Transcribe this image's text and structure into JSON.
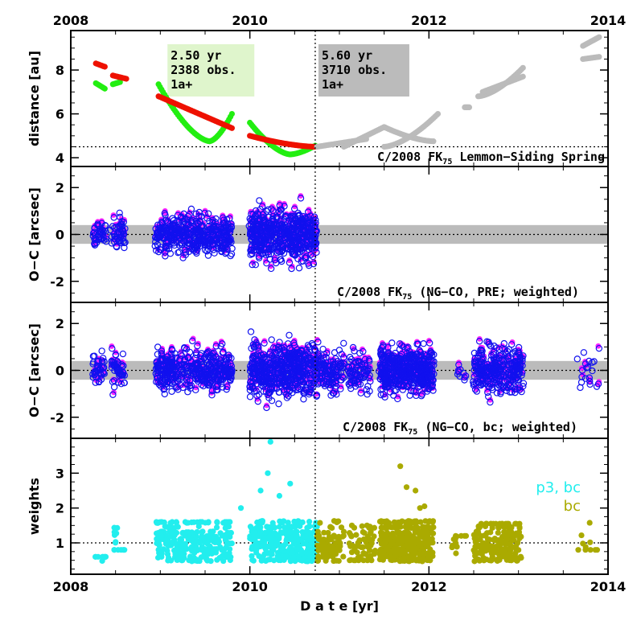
{
  "colors": {
    "green": "#22ee11",
    "red": "#ee1100",
    "gray": "#bbbbbb",
    "magenta": "#ff22ff",
    "blue": "#1111ee",
    "cyan": "#22eeee",
    "olive": "#aaaa00",
    "band": "#bbbbbb",
    "box_green": "#dff5cc",
    "box_gray": "#bbbbbb"
  },
  "chart_data": [
    {
      "type": "scatter",
      "panel": "distance",
      "title": "C/2008 FK75 Lemmon-Siding Spring",
      "title_main": "C/2008 FK",
      "title_sub": "75",
      "title_rest": " Lemmon−Siding Spring",
      "ylabel": "distance [au]",
      "xlim": [
        2008,
        2014
      ],
      "ylim": [
        3.6,
        9.8
      ],
      "yticks": [
        4,
        6,
        8
      ],
      "x_ticks_top": [
        "2008",
        "2010",
        "2012",
        "2014"
      ],
      "reference_y": 4.5,
      "perihelion_x": 2010.73,
      "info_boxes": [
        {
          "lines": [
            "2.50 yr",
            "2388 obs.",
            "1a+"
          ]
        },
        {
          "lines": [
            "5.60 yr",
            "3710 obs.",
            "1a+"
          ]
        }
      ],
      "series": [
        {
          "color": "green",
          "segments": [
            {
              "x0": 2008.28,
              "x1": 2008.38,
              "y0": 7.4,
              "y1": 7.15
            },
            {
              "x0": 2008.47,
              "x1": 2008.55,
              "y0": 7.35,
              "y1": 7.45
            },
            {
              "x0": 2008.98,
              "x1": 2009.55,
              "y0": 7.35,
              "y1": 4.75,
              "curve": "decay"
            },
            {
              "x0": 2009.55,
              "x1": 2009.8,
              "y0": 4.75,
              "y1": 6.0,
              "curve": "rise"
            },
            {
              "x0": 2010.0,
              "x1": 2010.45,
              "y0": 5.6,
              "y1": 4.15,
              "curve": "decay"
            },
            {
              "x0": 2010.45,
              "x1": 2010.73,
              "y0": 4.15,
              "y1": 4.55,
              "curve": "rise"
            }
          ]
        },
        {
          "color": "red",
          "segments": [
            {
              "x0": 2008.28,
              "x1": 2008.38,
              "y0": 8.3,
              "y1": 8.15
            },
            {
              "x0": 2008.47,
              "x1": 2008.62,
              "y0": 7.75,
              "y1": 7.6
            },
            {
              "x0": 2008.98,
              "x1": 2009.8,
              "y0": 6.8,
              "y1": 5.35
            },
            {
              "x0": 2010.0,
              "x1": 2010.73,
              "y0": 5.0,
              "y1": 4.5,
              "curve": "decay"
            }
          ]
        },
        {
          "color": "gray",
          "segments": [
            {
              "x0": 2010.75,
              "x1": 2011.3,
              "y0": 4.5,
              "y1": 4.85
            },
            {
              "x0": 2011.05,
              "x1": 2011.5,
              "y0": 4.5,
              "y1": 5.4
            },
            {
              "x0": 2011.5,
              "x1": 2012.05,
              "y0": 5.4,
              "y1": 4.75,
              "curve": "decay"
            },
            {
              "x0": 2011.5,
              "x1": 2012.1,
              "y0": 4.5,
              "y1": 6.0,
              "curve": "rise"
            },
            {
              "x0": 2012.4,
              "x1": 2012.45,
              "y0": 6.3,
              "y1": 6.3
            },
            {
              "x0": 2012.55,
              "x1": 2013.05,
              "y0": 6.8,
              "y1": 8.1,
              "curve": "rise"
            },
            {
              "x0": 2012.6,
              "x1": 2013.05,
              "y0": 7.0,
              "y1": 7.7
            },
            {
              "x0": 2013.72,
              "x1": 2013.9,
              "y0": 9.1,
              "y1": 9.5
            },
            {
              "x0": 2013.72,
              "x1": 2013.9,
              "y0": 8.5,
              "y1": 8.6
            }
          ]
        }
      ]
    },
    {
      "type": "scatter",
      "panel": "oc_pre",
      "title": "C/2008 FK75 (NG-CO, PRE; weighted)",
      "title_main": "C/2008 FK",
      "title_sub": "75",
      "title_rest": " (NG−CO, PRE; weighted)",
      "ylabel": "O-C [arcsec]",
      "ylabel_display": "O−C [arcsec]",
      "xlim": [
        2008,
        2014
      ],
      "ylim": [
        -2.9,
        2.9
      ],
      "yticks": [
        -2,
        0,
        2
      ],
      "band": [
        -0.4,
        0.4
      ],
      "clusters": [
        {
          "x0": 2008.25,
          "x1": 2008.4,
          "count": 40,
          "spread": 0.55
        },
        {
          "x0": 2008.45,
          "x1": 2008.6,
          "count": 50,
          "spread": 0.7
        },
        {
          "x0": 2008.95,
          "x1": 2009.8,
          "count": 420,
          "spread": 0.75
        },
        {
          "x0": 2010.0,
          "x1": 2010.75,
          "count": 520,
          "spread": 1.0
        }
      ],
      "series": [
        {
          "name": "",
          "color": "magenta",
          "marker": "filled"
        },
        {
          "name": "",
          "color": "blue",
          "marker": "open"
        }
      ]
    },
    {
      "type": "scatter",
      "panel": "oc_bc",
      "title": "C/2008 FK75 (NG-CO, bc; weighted)",
      "title_main": "C/2008 FK",
      "title_sub": "75",
      "title_rest": " (NG−CO, bc; weighted)",
      "ylabel": "O-C [arcsec]",
      "ylabel_display": "O−C [arcsec]",
      "xlim": [
        2008,
        2014
      ],
      "ylim": [
        -2.9,
        2.9
      ],
      "yticks": [
        -2,
        0,
        2
      ],
      "band": [
        -0.4,
        0.4
      ],
      "clusters": [
        {
          "x0": 2008.25,
          "x1": 2008.4,
          "count": 40,
          "spread": 0.55
        },
        {
          "x0": 2008.45,
          "x1": 2008.6,
          "count": 50,
          "spread": 0.7
        },
        {
          "x0": 2008.95,
          "x1": 2009.8,
          "count": 420,
          "spread": 0.75
        },
        {
          "x0": 2010.0,
          "x1": 2010.75,
          "count": 520,
          "spread": 1.0
        },
        {
          "x0": 2010.75,
          "x1": 2011.05,
          "count": 120,
          "spread": 0.9
        },
        {
          "x0": 2011.1,
          "x1": 2011.35,
          "count": 80,
          "spread": 0.8
        },
        {
          "x0": 2011.45,
          "x1": 2012.05,
          "count": 520,
          "spread": 0.85
        },
        {
          "x0": 2012.3,
          "x1": 2012.42,
          "count": 10,
          "spread": 0.5
        },
        {
          "x0": 2012.5,
          "x1": 2013.05,
          "count": 300,
          "spread": 0.85
        },
        {
          "x0": 2013.65,
          "x1": 2013.9,
          "count": 20,
          "spread": 0.8
        }
      ],
      "series": [
        {
          "name": "",
          "color": "magenta",
          "marker": "filled"
        },
        {
          "name": "",
          "color": "blue",
          "marker": "open"
        }
      ]
    },
    {
      "type": "scatter",
      "panel": "weights",
      "ylabel": "weights",
      "xlabel": "D a t e [yr]",
      "xlim": [
        2008,
        2014
      ],
      "ylim": [
        0.1,
        4.0
      ],
      "yticks": [
        1,
        2,
        3
      ],
      "reference_y": 1.0,
      "x_ticks_bottom": [
        "2008",
        "2010",
        "2012",
        "2014"
      ],
      "clusters": [
        {
          "series": "p3, bc",
          "x0": 2008.25,
          "x1": 2008.4,
          "count": 10,
          "ymin": 0.45,
          "ymax": 0.6
        },
        {
          "series": "p3, bc",
          "x0": 2008.45,
          "x1": 2008.6,
          "count": 14,
          "ymin": 0.8,
          "ymax": 1.7
        },
        {
          "series": "p3, bc",
          "x0": 2008.95,
          "x1": 2009.8,
          "count": 260,
          "ymin": 0.35,
          "ymax": 1.6
        },
        {
          "series": "p3, bc",
          "x0": 2010.0,
          "x1": 2010.75,
          "count": 320,
          "ymin": 0.3,
          "ymax": 1.75
        },
        {
          "series": "bc",
          "x0": 2010.75,
          "x1": 2011.05,
          "count": 90,
          "ymin": 0.3,
          "ymax": 1.8
        },
        {
          "series": "bc",
          "x0": 2011.1,
          "x1": 2011.4,
          "count": 60,
          "ymin": 0.5,
          "ymax": 1.5
        },
        {
          "series": "bc",
          "x0": 2011.45,
          "x1": 2012.05,
          "count": 340,
          "ymin": 0.4,
          "ymax": 1.7
        },
        {
          "series": "bc",
          "x0": 2012.25,
          "x1": 2012.45,
          "count": 12,
          "ymin": 0.7,
          "ymax": 1.2
        },
        {
          "series": "bc",
          "x0": 2012.5,
          "x1": 2013.05,
          "count": 180,
          "ymin": 0.3,
          "ymax": 1.55
        },
        {
          "series": "bc",
          "x0": 2013.65,
          "x1": 2013.9,
          "count": 10,
          "ymin": 0.8,
          "ymax": 1.6
        }
      ],
      "outliers": [
        {
          "series": "p3, bc",
          "x": 2010.23,
          "y": 3.9
        },
        {
          "series": "p3, bc",
          "x": 2010.2,
          "y": 3.0
        },
        {
          "series": "p3, bc",
          "x": 2010.12,
          "y": 2.5
        },
        {
          "series": "p3, bc",
          "x": 2010.45,
          "y": 2.7
        },
        {
          "series": "p3, bc",
          "x": 2010.33,
          "y": 2.35
        },
        {
          "series": "p3, bc",
          "x": 2009.9,
          "y": 2.0
        },
        {
          "series": "bc",
          "x": 2011.68,
          "y": 3.2
        },
        {
          "series": "bc",
          "x": 2011.75,
          "y": 2.6
        },
        {
          "series": "bc",
          "x": 2011.85,
          "y": 2.5
        },
        {
          "series": "bc",
          "x": 2011.95,
          "y": 2.05
        },
        {
          "series": "bc",
          "x": 2011.9,
          "y": 2.0
        }
      ],
      "series": [
        {
          "name": "p3, bc",
          "color": "cyan",
          "marker": "filled"
        },
        {
          "name": "bc",
          "color": "olive",
          "marker": "filled"
        }
      ]
    }
  ]
}
